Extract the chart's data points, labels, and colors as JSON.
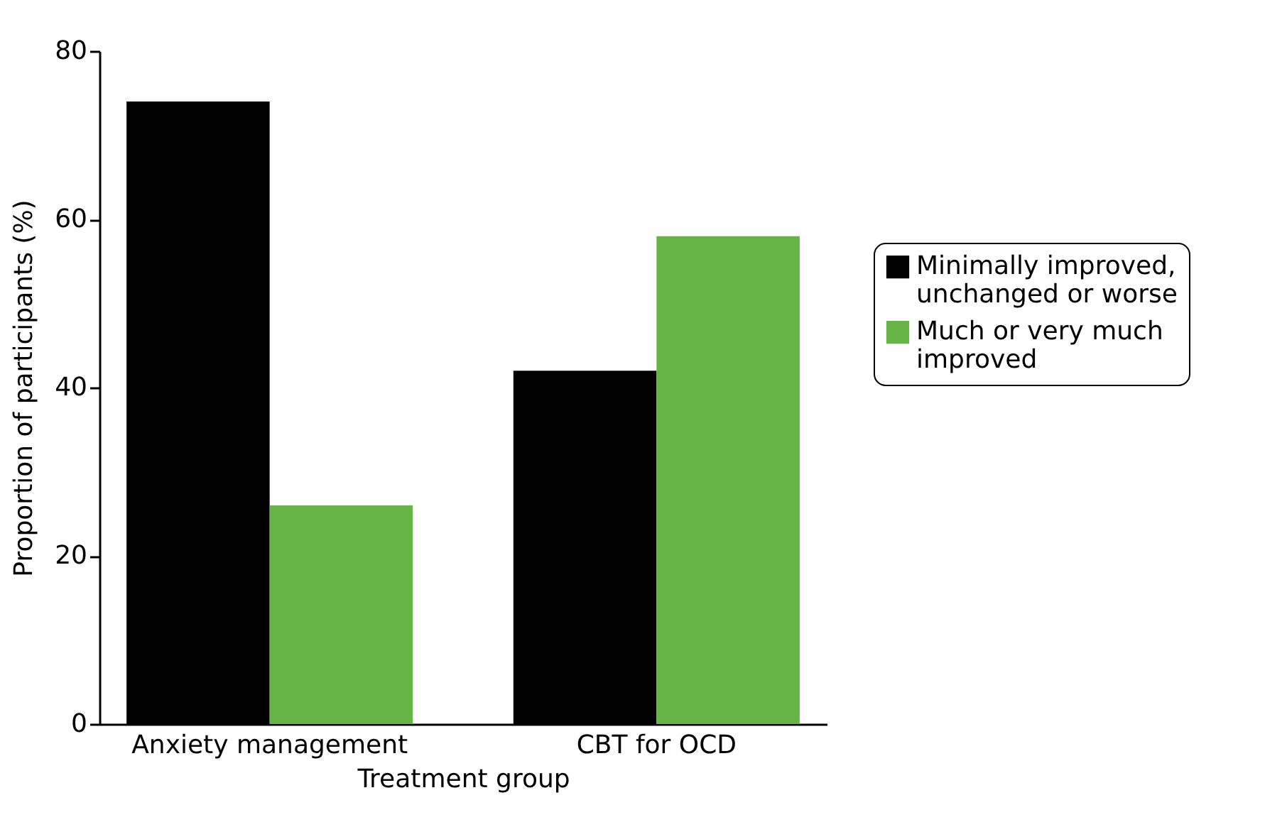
{
  "chart_data": {
    "type": "bar",
    "xlabel": "Treatment group",
    "ylabel": "Proportion of participants (%)",
    "categories": [
      "Anxiety management",
      "CBT for OCD"
    ],
    "series": [
      {
        "name": "Minimally improved, unchanged or worse",
        "color": "#000000",
        "values": [
          74,
          42
        ]
      },
      {
        "name": "Much or very much improved",
        "color": "#66b446",
        "values": [
          26,
          58
        ]
      }
    ],
    "ylim": [
      0,
      80
    ],
    "yticks": [
      0,
      20,
      40,
      60,
      80
    ],
    "grid": false,
    "legend": "right"
  }
}
